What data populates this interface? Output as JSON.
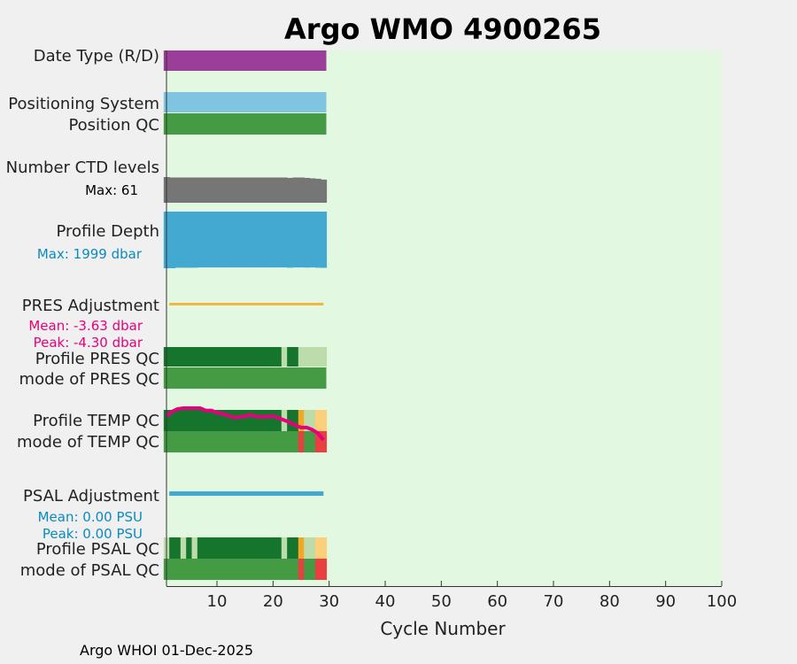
{
  "chart_data": {
    "type": "bar",
    "title": "Argo WMO 4900265",
    "xlabel": "Cycle Number",
    "xlim": [
      1,
      100
    ],
    "xticks": [
      "10",
      "20",
      "30",
      "40",
      "50",
      "60",
      "70",
      "80",
      "90",
      "100"
    ],
    "x_tick_values": [
      10,
      20,
      30,
      40,
      50,
      60,
      70,
      80,
      90,
      100
    ],
    "last_cycle": 29,
    "rows": {
      "date_type": "Date Type (R/D)",
      "positioning_system": "Positioning System",
      "position_qc": "Position QC",
      "ctd_levels": "Number CTD levels",
      "ctd_max": "Max: 61",
      "profile_depth": "Profile Depth",
      "depth_max": "Max: 1999 dbar",
      "pres_adjustment": "PRES Adjustment",
      "pres_mean": "Mean: -3.63 dbar",
      "pres_peak": "Peak: -4.30 dbar",
      "profile_pres_qc": "Profile PRES QC",
      "mode_pres_qc": "mode of PRES QC",
      "profile_temp_qc": "Profile TEMP QC",
      "mode_temp_qc": "mode of TEMP QC",
      "psal_adjustment": "PSAL Adjustment",
      "psal_mean": "Mean: 0.00 PSU",
      "psal_peak": "Peak: 0.00 PSU",
      "profile_psal_qc": "Profile PSAL QC",
      "mode_psal_qc": "mode of PSAL QC"
    },
    "ctd_levels": [
      61,
      60,
      60,
      60,
      60,
      60,
      60,
      60,
      60,
      60,
      60,
      60,
      60,
      60,
      60,
      60,
      60,
      60,
      60,
      60,
      60,
      60,
      59,
      60,
      60,
      59,
      58,
      57,
      55
    ],
    "profile_depth": [
      1999,
      1999,
      1980,
      1980,
      1980,
      1980,
      1970,
      1970,
      1970,
      1970,
      1970,
      1970,
      1970,
      1970,
      1970,
      1970,
      1970,
      1970,
      1970,
      1970,
      1970,
      1970,
      1980,
      1970,
      1970,
      1975,
      1970,
      1980,
      1985
    ],
    "temp_trace": [
      0.6,
      0.8,
      0.92,
      0.95,
      0.95,
      0.95,
      0.95,
      0.85,
      0.85,
      0.75,
      0.7,
      0.62,
      0.55,
      0.55,
      0.6,
      0.65,
      0.58,
      0.57,
      0.58,
      0.6,
      0.52,
      0.42,
      0.32,
      0.2,
      0.1,
      0.1,
      0.0,
      -0.15,
      -0.45
    ],
    "pres_qc_profile": [
      "A",
      "A",
      "A",
      "A",
      "A",
      "A",
      "A",
      "A",
      "A",
      "A",
      "A",
      "A",
      "A",
      "A",
      "A",
      "A",
      "A",
      "A",
      "A",
      "A",
      "A",
      "B",
      "A",
      "A",
      "B",
      "B",
      "B",
      "B",
      "B"
    ],
    "temp_qc_profile": [
      "A",
      "A",
      "A",
      "A",
      "A",
      "A",
      "A",
      "A",
      "A",
      "A",
      "A",
      "A",
      "A",
      "A",
      "A",
      "A",
      "A",
      "A",
      "A",
      "A",
      "A",
      "B",
      "A",
      "A",
      "C",
      "B",
      "B",
      "D",
      "D"
    ],
    "temp_qc_mode": [
      "1",
      "1",
      "1",
      "1",
      "1",
      "1",
      "1",
      "1",
      "1",
      "1",
      "1",
      "1",
      "1",
      "1",
      "1",
      "1",
      "1",
      "1",
      "1",
      "1",
      "1",
      "1",
      "1",
      "1",
      "4",
      "1",
      "1",
      "4",
      "4"
    ],
    "psal_qc_profile": [
      "B",
      "A",
      "A",
      "B",
      "A",
      "B",
      "A",
      "A",
      "A",
      "A",
      "A",
      "A",
      "A",
      "A",
      "A",
      "A",
      "A",
      "A",
      "A",
      "A",
      "A",
      "B",
      "A",
      "A",
      "C",
      "B",
      "B",
      "D",
      "D"
    ],
    "psal_qc_mode": [
      "1",
      "1",
      "1",
      "1",
      "1",
      "1",
      "1",
      "1",
      "1",
      "1",
      "1",
      "1",
      "1",
      "1",
      "1",
      "1",
      "1",
      "1",
      "1",
      "1",
      "1",
      "1",
      "1",
      "1",
      "4",
      "1",
      "1",
      "4",
      "4"
    ],
    "colors": {
      "plot_bg": "#e3f8e0",
      "title": "#0a8bbf",
      "date_type": "#9a3e9a",
      "positioning": "#7fc4e0",
      "good": "#459a44",
      "qc_A": "#16752d",
      "qc_B": "#bcdcab",
      "qc_C": "#f5a623",
      "qc_D": "#fcd07a",
      "qc_bad": "#e84040",
      "ctd": "#767676",
      "depth": "#43a9d0",
      "pres_adj": "#f0b840",
      "psal_adj": "#43a9d0",
      "temp_line": "#e6007e",
      "magenta_text": "#e6007e",
      "blue_text": "#0a8bbf"
    }
  },
  "footer": "Argo WHOI 01-Dec-2025"
}
